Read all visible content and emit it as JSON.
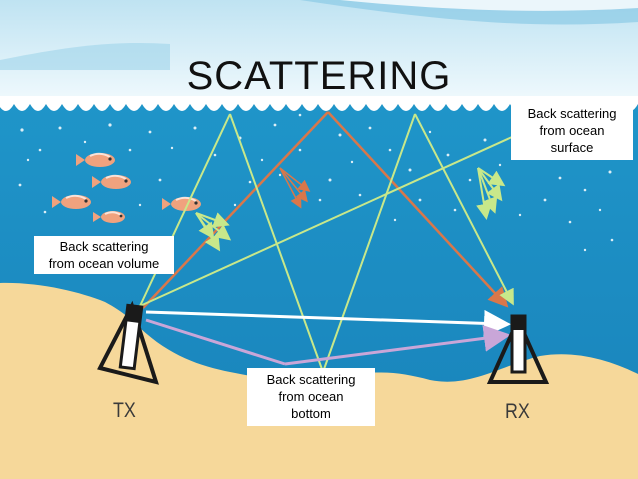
{
  "title": "SCATTERING",
  "callouts": {
    "surface": [
      "Back scattering",
      "from ocean",
      "surface"
    ],
    "volume": [
      "Back scattering",
      "from ocean volume"
    ],
    "bottom": [
      "Back scattering",
      "from ocean",
      "bottom"
    ]
  },
  "units": {
    "transmitter": "TX",
    "receiver": "RX"
  },
  "colors": {
    "sky": "#d9eef7",
    "water": "#1c8ec4",
    "sand": "#f6d89a",
    "ray_green": "#c8e88a",
    "ray_orange": "#d9774a",
    "ray_direct": "#ffffff",
    "ray_lavender": "#c9a6d8"
  }
}
